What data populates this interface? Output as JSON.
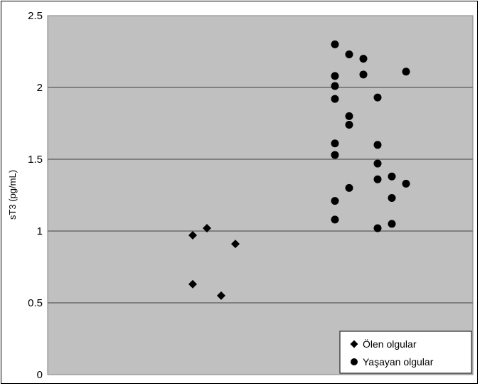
{
  "chart_data": {
    "type": "scatter",
    "ylabel": "sT3 (pg/mL)",
    "ylim": [
      0,
      2.5
    ],
    "yticks": [
      0,
      0.5,
      1,
      1.5,
      2,
      2.5
    ],
    "ytick_labels": [
      "0",
      "0.5",
      "1",
      "1.5",
      "2",
      "2.5"
    ],
    "grid": "horizontal",
    "legend_position": "bottom-right",
    "plot_background": "#c0c0c0",
    "series": [
      {
        "name": "Ölen olgular",
        "marker": "diamond",
        "color": "#000000",
        "points": [
          {
            "x": 1.0,
            "y": 0.97
          },
          {
            "x": 1.1,
            "y": 1.02
          },
          {
            "x": 1.3,
            "y": 0.91
          },
          {
            "x": 1.0,
            "y": 0.63
          },
          {
            "x": 1.2,
            "y": 0.55
          }
        ]
      },
      {
        "name": "Yaşayan olgular",
        "marker": "circle",
        "color": "#000000",
        "points": [
          {
            "x": 2.0,
            "y": 2.3
          },
          {
            "x": 2.1,
            "y": 2.23
          },
          {
            "x": 2.2,
            "y": 2.2
          },
          {
            "x": 2.0,
            "y": 2.08
          },
          {
            "x": 2.2,
            "y": 2.09
          },
          {
            "x": 2.5,
            "y": 2.11
          },
          {
            "x": 2.0,
            "y": 2.01
          },
          {
            "x": 2.0,
            "y": 1.92
          },
          {
            "x": 2.3,
            "y": 1.93
          },
          {
            "x": 2.1,
            "y": 1.8
          },
          {
            "x": 2.1,
            "y": 1.74
          },
          {
            "x": 2.0,
            "y": 1.61
          },
          {
            "x": 2.3,
            "y": 1.6
          },
          {
            "x": 2.0,
            "y": 1.53
          },
          {
            "x": 2.3,
            "y": 1.47
          },
          {
            "x": 2.4,
            "y": 1.38
          },
          {
            "x": 2.3,
            "y": 1.36
          },
          {
            "x": 2.5,
            "y": 1.33
          },
          {
            "x": 2.1,
            "y": 1.3
          },
          {
            "x": 2.4,
            "y": 1.23
          },
          {
            "x": 2.0,
            "y": 1.21
          },
          {
            "x": 2.0,
            "y": 1.08
          },
          {
            "x": 2.4,
            "y": 1.05
          },
          {
            "x": 2.3,
            "y": 1.02
          }
        ]
      }
    ]
  }
}
